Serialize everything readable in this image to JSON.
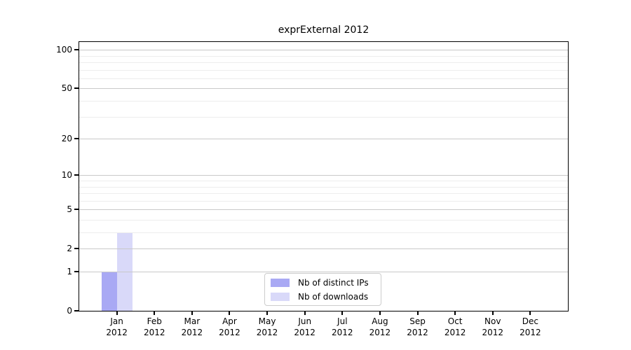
{
  "title": "exprExternal 2012",
  "colors": {
    "series_distinct_ips": "#a9a9f4",
    "series_downloads": "#d9d9f9",
    "major_gridline": "#c9c9c9",
    "minor_gridline": "#ededed",
    "axis_frame": "#000000",
    "legend_border": "#cccccc",
    "background": "#ffffff"
  },
  "chart_data": {
    "type": "bar",
    "title": "exprExternal 2012",
    "categories": [
      {
        "month": "Jan",
        "year": "2012"
      },
      {
        "month": "Feb",
        "year": "2012"
      },
      {
        "month": "Mar",
        "year": "2012"
      },
      {
        "month": "Apr",
        "year": "2012"
      },
      {
        "month": "May",
        "year": "2012"
      },
      {
        "month": "Jun",
        "year": "2012"
      },
      {
        "month": "Jul",
        "year": "2012"
      },
      {
        "month": "Aug",
        "year": "2012"
      },
      {
        "month": "Sep",
        "year": "2012"
      },
      {
        "month": "Oct",
        "year": "2012"
      },
      {
        "month": "Nov",
        "year": "2012"
      },
      {
        "month": "Dec",
        "year": "2012"
      }
    ],
    "series": [
      {
        "name": "Nb of distinct IPs",
        "color": "#a9a9f4",
        "values": [
          1,
          0,
          0,
          0,
          0,
          0,
          0,
          0,
          0,
          0,
          0,
          0
        ]
      },
      {
        "name": "Nb of downloads",
        "color": "#d9d9f9",
        "values": [
          3,
          0,
          0,
          0,
          0,
          0,
          0,
          0,
          0,
          0,
          0,
          0
        ]
      }
    ],
    "y_scale": "log10(1+x)",
    "y_ticks": [
      0,
      1,
      2,
      5,
      10,
      20,
      50,
      100
    ],
    "y_minor_ticks": [
      3,
      4,
      6,
      7,
      8,
      9,
      30,
      40,
      60,
      70,
      80,
      90
    ],
    "ylim": [
      0,
      115
    ],
    "xlabel": "",
    "ylabel": "",
    "grid": true,
    "legend_position": "lower center"
  }
}
